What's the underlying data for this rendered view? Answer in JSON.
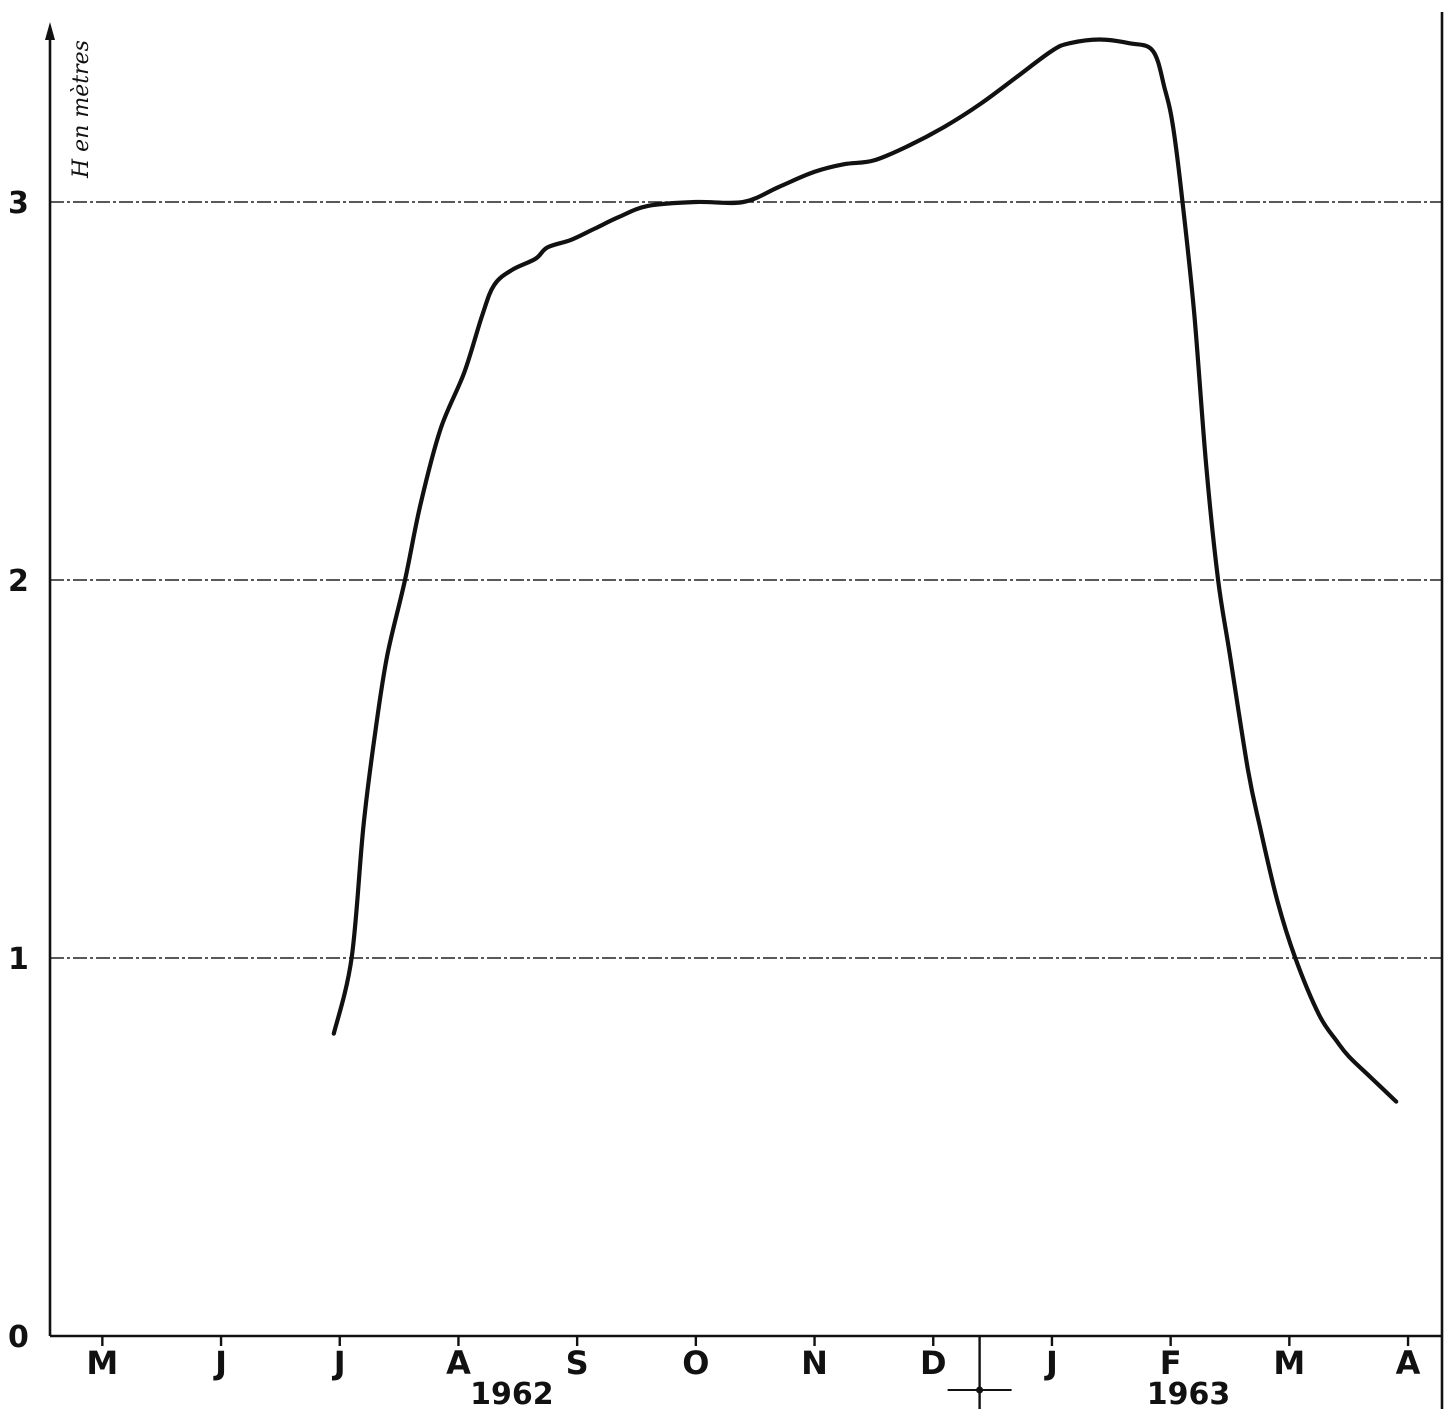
{
  "chart_data": {
    "type": "line",
    "ylabel": "H en mètres",
    "ylim": [
      0,
      3.5
    ],
    "yticks": [
      "0",
      "1",
      "2",
      "3"
    ],
    "months": [
      "M",
      "J",
      "J",
      "A",
      "S",
      "O",
      "N",
      "D",
      "J",
      "F",
      "M",
      "A"
    ],
    "years": [
      "1962",
      "1963"
    ],
    "grid": "horizontal dashed at 1, 2, 3",
    "series": [
      {
        "points": [
          [
            2.45,
            0.8
          ],
          [
            2.6,
            1.0
          ],
          [
            2.7,
            1.35
          ],
          [
            2.8,
            1.6
          ],
          [
            2.9,
            1.8
          ],
          [
            3.05,
            2.0
          ],
          [
            3.18,
            2.2
          ],
          [
            3.35,
            2.4
          ],
          [
            3.55,
            2.55
          ],
          [
            3.7,
            2.7
          ],
          [
            3.8,
            2.78
          ],
          [
            3.95,
            2.82
          ],
          [
            4.15,
            2.85
          ],
          [
            4.25,
            2.88
          ],
          [
            4.45,
            2.9
          ],
          [
            4.65,
            2.93
          ],
          [
            4.85,
            2.96
          ],
          [
            5.1,
            2.99
          ],
          [
            5.5,
            3.0
          ],
          [
            5.9,
            3.0
          ],
          [
            6.2,
            3.04
          ],
          [
            6.5,
            3.08
          ],
          [
            6.75,
            3.1
          ],
          [
            7.0,
            3.11
          ],
          [
            7.3,
            3.15
          ],
          [
            7.6,
            3.2
          ],
          [
            7.9,
            3.26
          ],
          [
            8.2,
            3.33
          ],
          [
            8.5,
            3.4
          ],
          [
            8.65,
            3.42
          ],
          [
            8.9,
            3.43
          ],
          [
            9.15,
            3.42
          ],
          [
            9.35,
            3.4
          ],
          [
            9.45,
            3.3
          ],
          [
            9.52,
            3.2
          ],
          [
            9.6,
            3.0
          ],
          [
            9.7,
            2.7
          ],
          [
            9.8,
            2.3
          ],
          [
            9.9,
            2.0
          ],
          [
            10.0,
            1.8
          ],
          [
            10.15,
            1.5
          ],
          [
            10.25,
            1.35
          ],
          [
            10.4,
            1.15
          ],
          [
            10.55,
            1.0
          ],
          [
            10.75,
            0.85
          ],
          [
            10.9,
            0.78
          ],
          [
            11.0,
            0.74
          ],
          [
            11.2,
            0.68
          ],
          [
            11.4,
            0.62
          ]
        ]
      }
    ]
  }
}
